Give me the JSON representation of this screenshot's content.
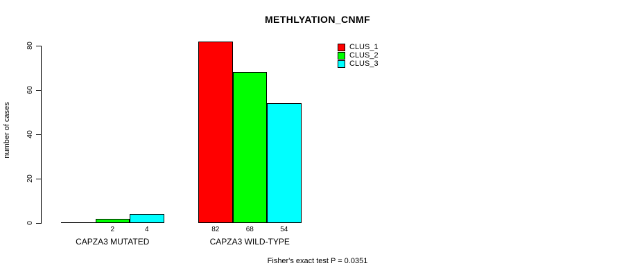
{
  "title": "METHLYATION_CNMF",
  "footer": "Fisher's exact test P = 0.0351",
  "y_axis": {
    "label": "number of cases"
  },
  "legend": {
    "items": [
      {
        "label": "CLUS_1",
        "color": "#ff0000"
      },
      {
        "label": "CLUS_2",
        "color": "#00ff00"
      },
      {
        "label": "CLUS_3",
        "color": "#00ffff"
      }
    ]
  },
  "chart_data": {
    "type": "bar",
    "title": "METHLYATION_CNMF",
    "xlabel": "",
    "ylabel": "number of cases",
    "ylim": [
      0,
      80
    ],
    "yticks": [
      0,
      20,
      40,
      60,
      80
    ],
    "grid": false,
    "legend_position": "top-right-inside",
    "categories": [
      "CAPZA3 MUTATED",
      "CAPZA3 WILD-TYPE"
    ],
    "series": [
      {
        "name": "CLUS_1",
        "color": "#ff0000",
        "values": [
          0,
          82
        ]
      },
      {
        "name": "CLUS_2",
        "color": "#00ff00",
        "values": [
          2,
          68
        ]
      },
      {
        "name": "CLUS_3",
        "color": "#00ffff",
        "values": [
          4,
          54
        ]
      }
    ],
    "bar_value_labels": [
      [
        "",
        "2",
        "4"
      ],
      [
        "82",
        "68",
        "54"
      ]
    ],
    "annotation": "Fisher's exact test P = 0.0351"
  }
}
